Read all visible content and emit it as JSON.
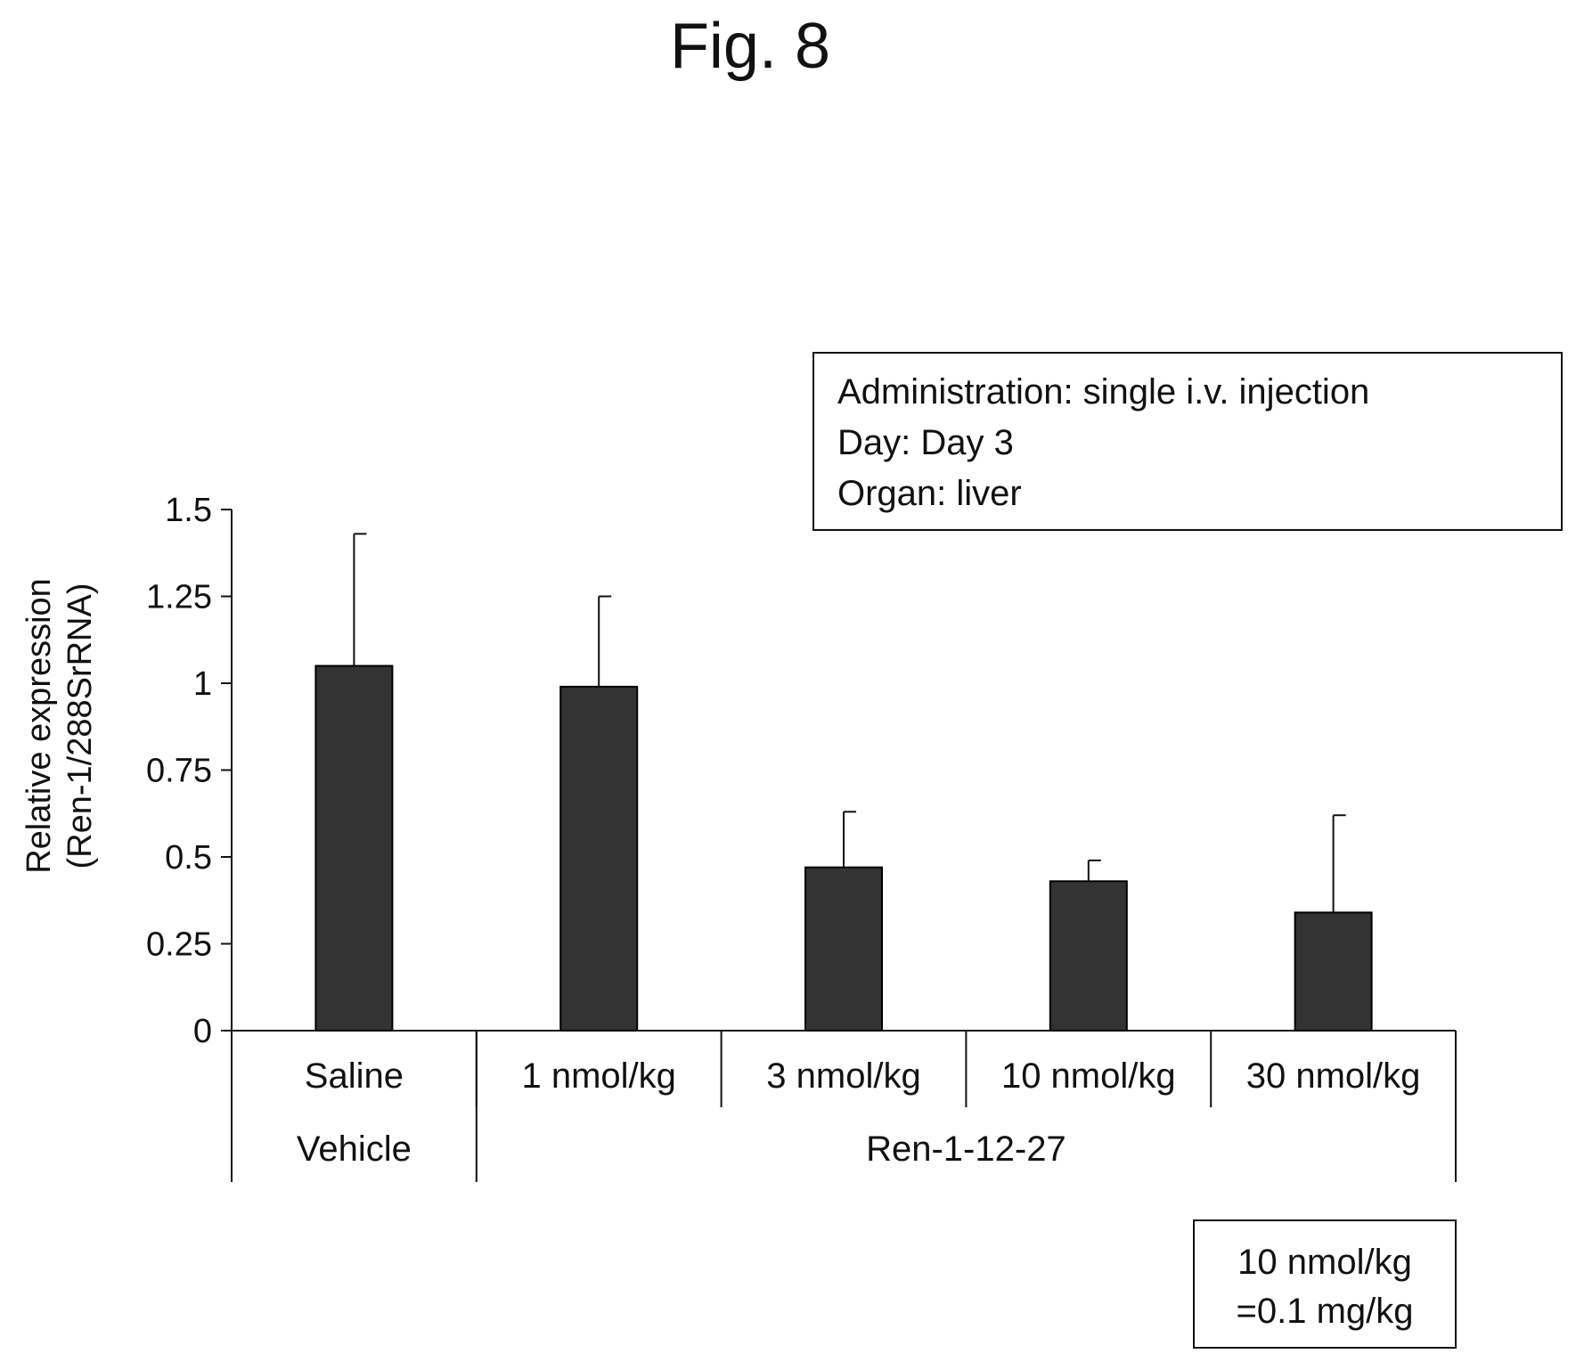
{
  "figure_title": "Fig. 8",
  "info_box": {
    "lines": [
      "Administration: single i.v. injection",
      "Day: Day 3",
      "Organ: liver"
    ]
  },
  "note_box": {
    "lines": [
      "10 nmol/kg",
      "=0.1 mg/kg"
    ]
  },
  "colors": {
    "bar": "#333333",
    "axis": "#111111"
  },
  "chart_data": {
    "type": "bar",
    "ylabel_lines": [
      "Relative expression",
      "(Ren-1/288SrRNA)"
    ],
    "ylim": [
      0,
      1.5
    ],
    "yticks": [
      0,
      0.25,
      0.5,
      0.75,
      1,
      1.25,
      1.5
    ],
    "ytick_labels": [
      "0",
      "0.25",
      "0.5",
      "0.75",
      "1",
      "1.25",
      "1.5"
    ],
    "categories": [
      "Saline",
      "1 nmol/kg",
      "3 nmol/kg",
      "10 nmol/kg",
      "30 nmol/kg"
    ],
    "values": [
      1.05,
      0.99,
      0.47,
      0.43,
      0.34
    ],
    "errors": [
      0.38,
      0.26,
      0.16,
      0.06,
      0.28
    ],
    "groups": [
      {
        "label": "Vehicle",
        "categories": [
          "Saline"
        ]
      },
      {
        "label": "Ren-1-12-27",
        "categories": [
          "1 nmol/kg",
          "3 nmol/kg",
          "10 nmol/kg",
          "30 nmol/kg"
        ]
      }
    ],
    "grid": false,
    "legend": "none"
  }
}
